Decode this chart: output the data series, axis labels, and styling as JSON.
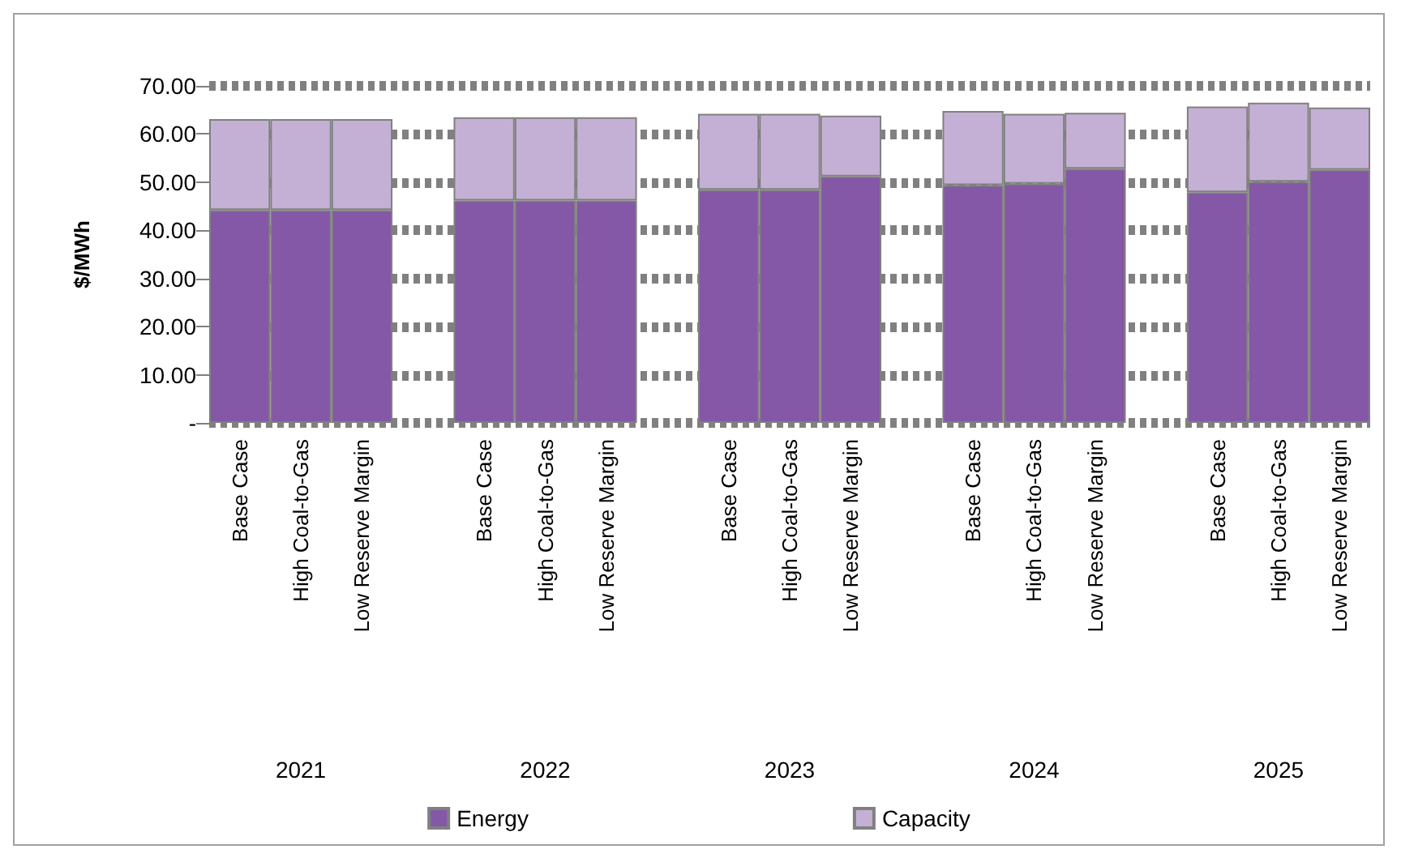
{
  "chart_data": {
    "type": "bar",
    "stacked": true,
    "ylabel": "$/MWh",
    "categories": [
      "Base Case",
      "High Coal-to-Gas",
      "Low Reserve Margin",
      null,
      "Base Case",
      "High Coal-to-Gas",
      "Low Reserve Margin",
      null,
      "Base Case",
      "High Coal-to-Gas",
      "Low Reserve Margin",
      null,
      "Base Case",
      "High Coal-to-Gas",
      "Low Reserve Margin",
      null,
      "Base Case",
      "High Coal-to-Gas",
      "Low Reserve Margin"
    ],
    "series": [
      {
        "name": "Energy",
        "color": "#8557a7",
        "values": [
          44.2,
          44.2,
          44.2,
          null,
          46.2,
          46.2,
          46.2,
          null,
          48.4,
          48.4,
          51.2,
          null,
          49.4,
          49.7,
          52.8,
          null,
          47.9,
          50.1,
          52.6
        ]
      },
      {
        "name": "Capacity",
        "color": "#c5b0d5",
        "values": [
          18.9,
          18.9,
          18.9,
          null,
          17.3,
          17.3,
          17.3,
          null,
          15.8,
          15.8,
          12.6,
          null,
          15.4,
          14.5,
          11.6,
          null,
          17.8,
          16.4,
          12.9
        ]
      }
    ],
    "annotations": [
      "2021",
      "2022",
      "2023",
      "2024",
      "2025"
    ],
    "ylim": [
      0,
      70
    ],
    "yticks": [
      {
        "value": 0,
        "label": "-"
      },
      {
        "value": 10,
        "label": "10.00"
      },
      {
        "value": 20,
        "label": "20.00"
      },
      {
        "value": 30,
        "label": "30.00"
      },
      {
        "value": 40,
        "label": "40.00"
      },
      {
        "value": 50,
        "label": "50.00"
      },
      {
        "value": 60,
        "label": "60.00"
      },
      {
        "value": 70,
        "label": "70.00"
      }
    ],
    "grid": "y",
    "legend": "bottom"
  }
}
